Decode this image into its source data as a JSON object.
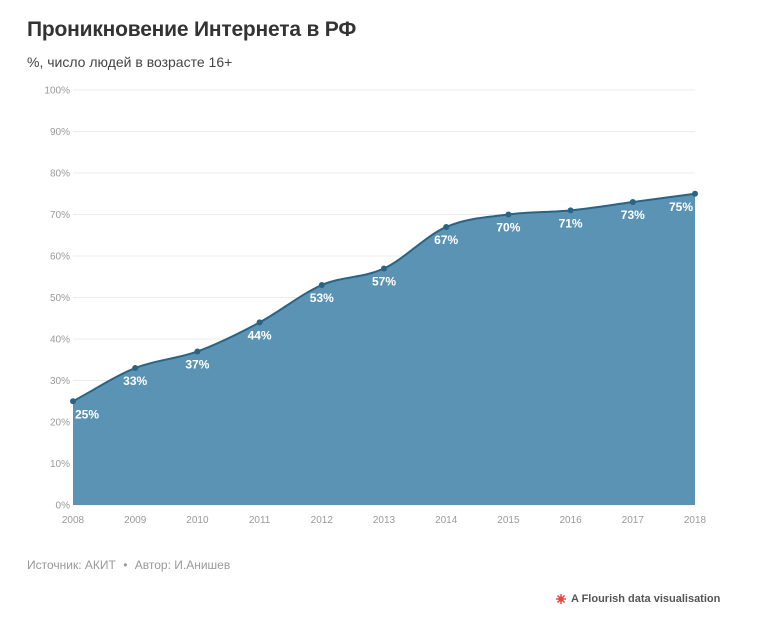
{
  "header": {
    "title": "Проникновение Интернета в РФ",
    "subtitle": "%, число людей в возрасте 16+"
  },
  "footer": {
    "source": "Источник: АКИТ",
    "separator": "•",
    "author": "Автор: И.Анишев",
    "credit": "A Flourish data visualisation"
  },
  "colors": {
    "area": "#5b93b4",
    "line": "#2a6485",
    "grid": "#ebebeb",
    "flourish_icon": "#e8433c"
  },
  "chart_data": {
    "type": "area",
    "x": [
      2008,
      2009,
      2010,
      2011,
      2012,
      2013,
      2014,
      2015,
      2016,
      2017,
      2018
    ],
    "series": [
      {
        "values": [
          25,
          33,
          37,
          44,
          53,
          57,
          67,
          70,
          71,
          73,
          75
        ]
      }
    ],
    "data_labels": [
      "25%",
      "33%",
      "37%",
      "44%",
      "53%",
      "57%",
      "67%",
      "70%",
      "71%",
      "73%",
      "75%"
    ],
    "y_ticks": [
      0,
      10,
      20,
      30,
      40,
      50,
      60,
      70,
      80,
      90,
      100
    ],
    "y_tick_labels": [
      "0%",
      "10%",
      "20%",
      "30%",
      "40%",
      "50%",
      "60%",
      "70%",
      "80%",
      "90%",
      "100%"
    ],
    "x_tick_labels": [
      "2008",
      "2009",
      "2010",
      "2011",
      "2012",
      "2013",
      "2014",
      "2015",
      "2016",
      "2017",
      "2018"
    ],
    "ylim": [
      0,
      100
    ],
    "xlim": [
      2008,
      2018
    ],
    "grid": true,
    "legend": "none",
    "curve": "smooth"
  }
}
